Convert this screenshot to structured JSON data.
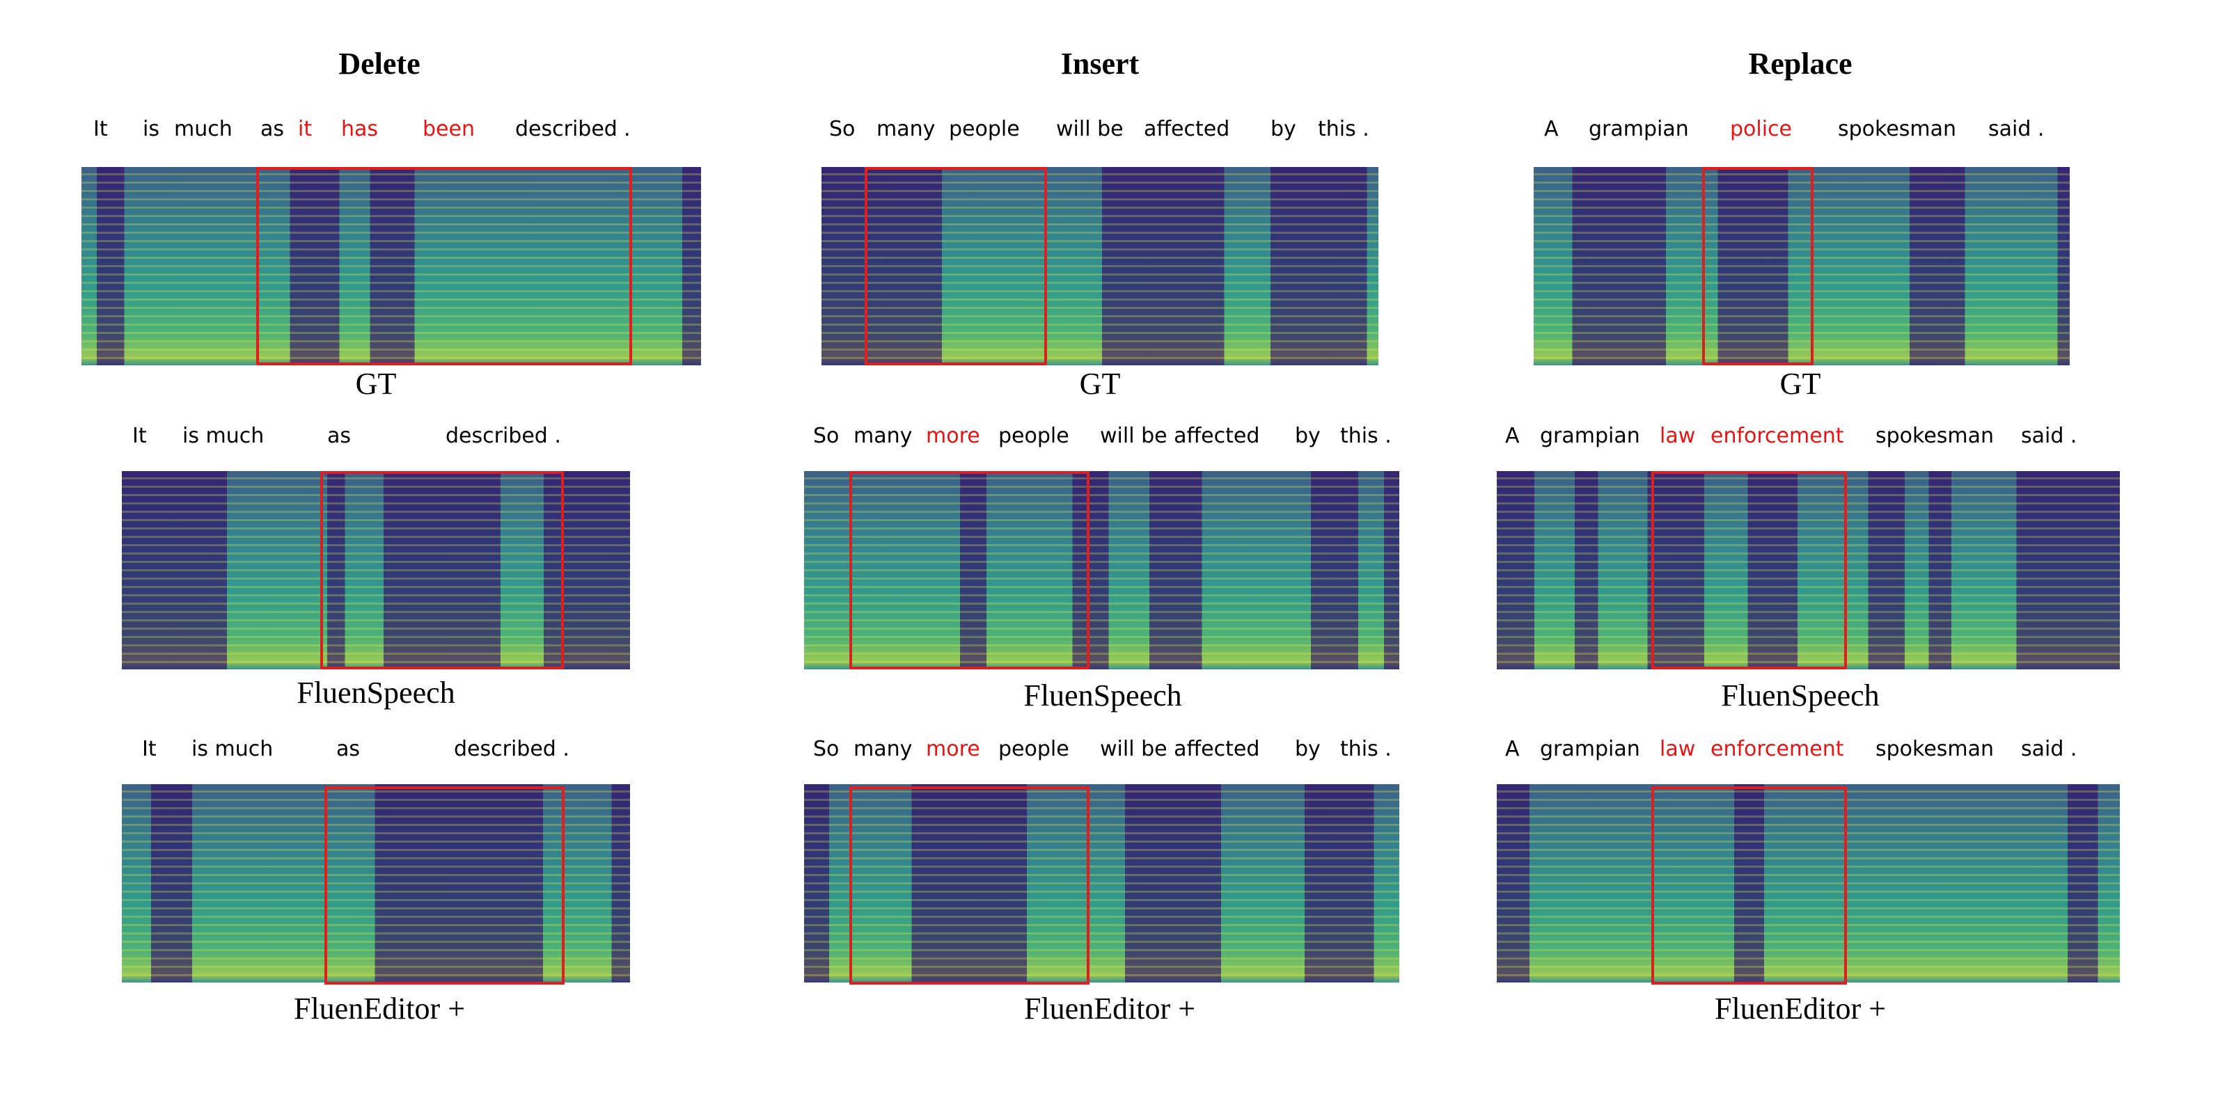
{
  "columns": [
    {
      "title": "Delete",
      "rows": [
        {
          "caption": "GT",
          "words": [
            {
              "text": "It",
              "hl": false
            },
            {
              "text": "is",
              "hl": false
            },
            {
              "text": "much",
              "hl": false
            },
            {
              "text": "as",
              "hl": false
            },
            {
              "text": "it",
              "hl": true
            },
            {
              "text": "has",
              "hl": true
            },
            {
              "text": "been",
              "hl": true
            },
            {
              "text": "described",
              "hl": false
            },
            {
              "text": ".",
              "hl": false
            }
          ]
        },
        {
          "caption": "FluenSpeech",
          "words": [
            {
              "text": "It",
              "hl": false
            },
            {
              "text": "is much",
              "hl": false
            },
            {
              "text": "as",
              "hl": false
            },
            {
              "text": "described .",
              "hl": false
            }
          ]
        },
        {
          "caption": "FluenEditor +",
          "words": [
            {
              "text": "It",
              "hl": false
            },
            {
              "text": "is much",
              "hl": false
            },
            {
              "text": "as",
              "hl": false
            },
            {
              "text": "described .",
              "hl": false
            }
          ]
        }
      ]
    },
    {
      "title": "Insert",
      "rows": [
        {
          "caption": "GT",
          "words": [
            {
              "text": "So",
              "hl": false
            },
            {
              "text": "many",
              "hl": false
            },
            {
              "text": "people",
              "hl": false
            },
            {
              "text": "will be",
              "hl": false
            },
            {
              "text": "affected",
              "hl": false
            },
            {
              "text": "by",
              "hl": false
            },
            {
              "text": "this .",
              "hl": false
            }
          ]
        },
        {
          "caption": "FluenSpeech",
          "words": [
            {
              "text": "So",
              "hl": false
            },
            {
              "text": "many",
              "hl": false
            },
            {
              "text": "more",
              "hl": true
            },
            {
              "text": "people",
              "hl": false
            },
            {
              "text": "will be affected",
              "hl": false
            },
            {
              "text": "by",
              "hl": false
            },
            {
              "text": "this .",
              "hl": false
            }
          ]
        },
        {
          "caption": "FluenEditor +",
          "words": [
            {
              "text": "So",
              "hl": false
            },
            {
              "text": "many",
              "hl": false
            },
            {
              "text": "more",
              "hl": true
            },
            {
              "text": "people",
              "hl": false
            },
            {
              "text": "will be affected",
              "hl": false
            },
            {
              "text": "by",
              "hl": false
            },
            {
              "text": "this .",
              "hl": false
            }
          ]
        }
      ]
    },
    {
      "title": "Replace",
      "rows": [
        {
          "caption": "GT",
          "words": [
            {
              "text": "A",
              "hl": false
            },
            {
              "text": "grampian",
              "hl": false
            },
            {
              "text": "police",
              "hl": true
            },
            {
              "text": "spokesman",
              "hl": false
            },
            {
              "text": "said .",
              "hl": false
            }
          ]
        },
        {
          "caption": "FluenSpeech",
          "words": [
            {
              "text": "A",
              "hl": false
            },
            {
              "text": "grampian",
              "hl": false
            },
            {
              "text": "law",
              "hl": true
            },
            {
              "text": "enforcement",
              "hl": true
            },
            {
              "text": "spokesman",
              "hl": false
            },
            {
              "text": "said .",
              "hl": false
            }
          ]
        },
        {
          "caption": "FluenEditor +",
          "words": [
            {
              "text": "A",
              "hl": false
            },
            {
              "text": "grampian",
              "hl": false
            },
            {
              "text": "law",
              "hl": true
            },
            {
              "text": "enforcement",
              "hl": true
            },
            {
              "text": "spokesman",
              "hl": false
            },
            {
              "text": "said .",
              "hl": false
            }
          ]
        }
      ]
    }
  ]
}
